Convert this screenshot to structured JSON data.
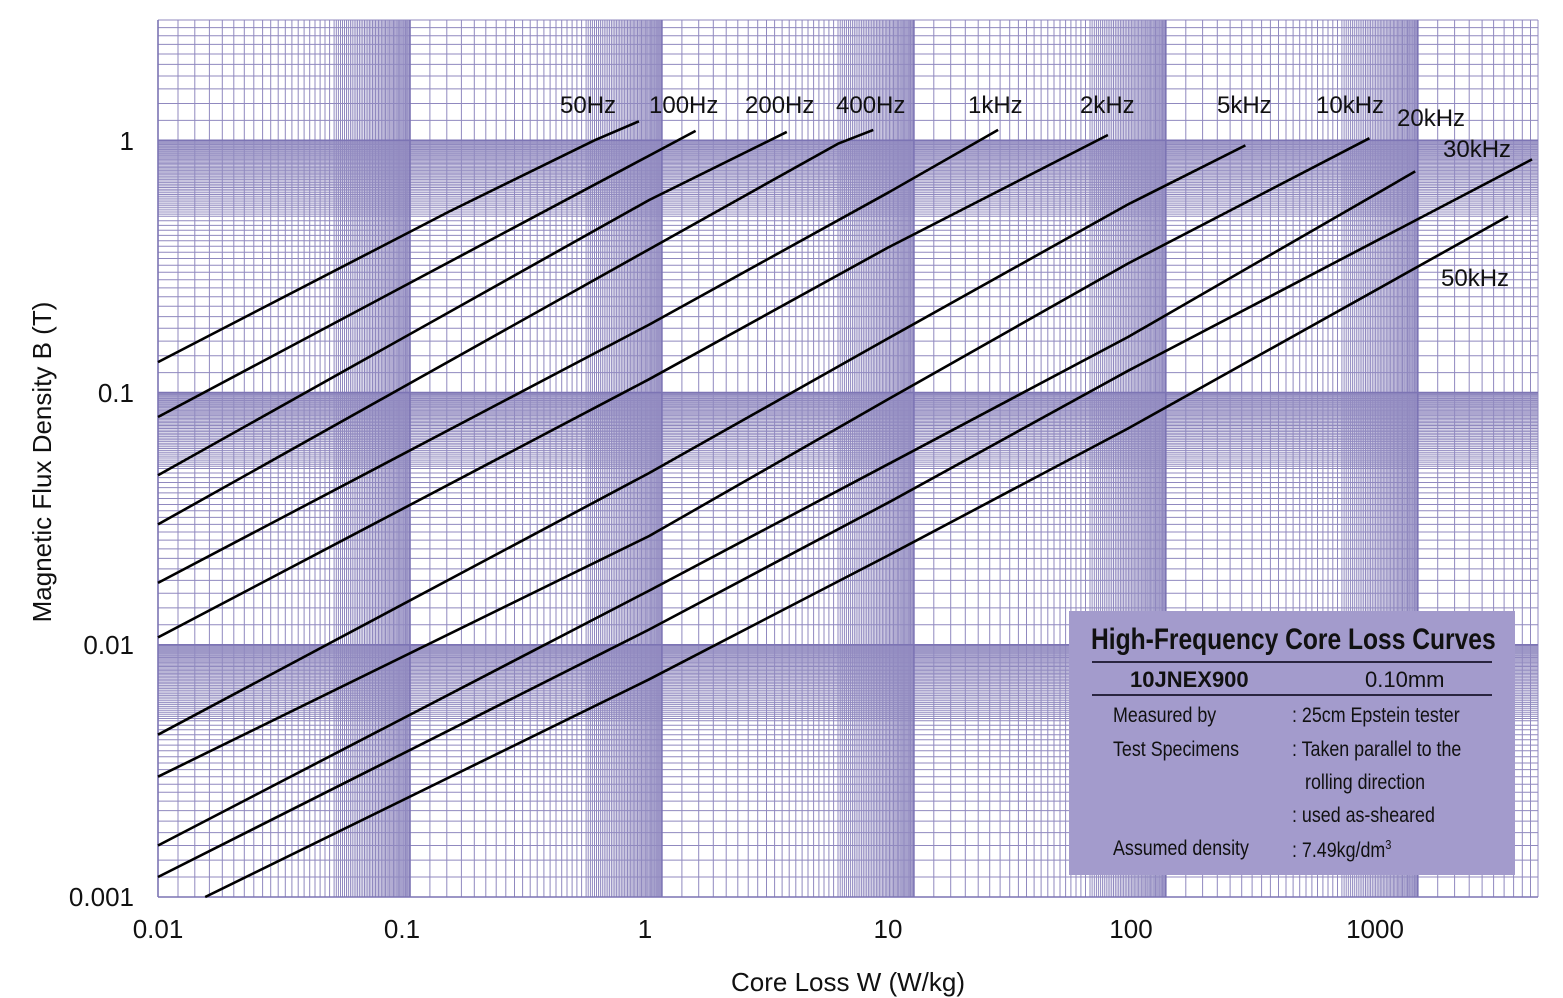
{
  "chart_data": {
    "type": "line",
    "title": "",
    "xlabel": "Core Loss W (W/kg)",
    "ylabel": "Magnetic Flux Density B (T)",
    "xscale": "log",
    "yscale": "log",
    "xlim": [
      0.01,
      3000
    ],
    "ylim": [
      0.001,
      3
    ],
    "grid": true,
    "grid_color": "#7c74b4",
    "line_color": "#000000",
    "xticks": [
      "0.01",
      "0.1",
      "1",
      "10",
      "100",
      "1000"
    ],
    "yticks": [
      "1",
      "0.1",
      "0.01",
      "0.001"
    ],
    "series": [
      {
        "name": "50Hz",
        "points": [
          [
            0.01,
            0.132
          ],
          [
            0.142,
            0.52
          ],
          [
            0.54,
            1.0
          ],
          [
            0.81,
            1.19
          ]
        ]
      },
      {
        "name": "100Hz",
        "points": [
          [
            0.01,
            0.08
          ],
          [
            0.89,
            0.87
          ],
          [
            1.36,
            1.09
          ]
        ]
      },
      {
        "name": "200Hz",
        "points": [
          [
            0.01,
            0.047
          ],
          [
            0.89,
            0.58
          ],
          [
            3.13,
            1.08
          ]
        ]
      },
      {
        "name": "400Hz",
        "points": [
          [
            0.01,
            0.03
          ],
          [
            0.89,
            0.37
          ],
          [
            5.0,
            0.97
          ],
          [
            6.9,
            1.1
          ]
        ]
      },
      {
        "name": "1kHz",
        "points": [
          [
            0.01,
            0.0176
          ],
          [
            0.89,
            0.186
          ],
          [
            7.9,
            0.62
          ],
          [
            21.6,
            1.1
          ]
        ]
      },
      {
        "name": "2kHz",
        "points": [
          [
            0.01,
            0.0107
          ],
          [
            0.89,
            0.113
          ],
          [
            7.9,
            0.376
          ],
          [
            58.9,
            1.05
          ]
        ]
      },
      {
        "name": "5kHz",
        "points": [
          [
            0.01,
            0.0044
          ],
          [
            0.89,
            0.048
          ],
          [
            7.9,
            0.164
          ],
          [
            70.8,
            0.557
          ],
          [
            207,
            0.955
          ]
        ]
      },
      {
        "name": "10kHz",
        "points": [
          [
            0.01,
            0.003
          ],
          [
            0.89,
            0.027
          ],
          [
            7.9,
            0.094
          ],
          [
            70.8,
            0.325
          ],
          [
            643,
            1.02
          ]
        ]
      },
      {
        "name": "20kHz",
        "points": [
          [
            0.01,
            0.0016
          ],
          [
            0.89,
            0.0164
          ],
          [
            7.9,
            0.052
          ],
          [
            70.8,
            0.166
          ],
          [
            977,
            0.753
          ]
        ]
      },
      {
        "name": "30kHz",
        "points": [
          [
            0.01,
            0.0012
          ],
          [
            0.89,
            0.0115
          ],
          [
            7.9,
            0.0366
          ],
          [
            70.8,
            0.122
          ],
          [
            2840,
            0.84
          ]
        ]
      },
      {
        "name": "50kHz",
        "points": [
          [
            0.0154,
            0.001
          ],
          [
            0.89,
            0.0073
          ],
          [
            7.9,
            0.0226
          ],
          [
            70.8,
            0.072
          ],
          [
            2280,
            0.5
          ]
        ]
      }
    ],
    "info_box": {
      "title": "High-Frequency Core Loss Curves",
      "grade": "10JNEX900",
      "thickness": "0.10mm",
      "rows": [
        {
          "label": "Measured by",
          "value": ": 25cm Epstein tester"
        },
        {
          "label": "Test Specimens",
          "value": ": Taken parallel to the"
        },
        {
          "label": "",
          "value": "rolling direction"
        },
        {
          "label": "",
          "value": ": used as-sheared"
        },
        {
          "label": "Assumed density",
          "value": ": 7.49kg/dm",
          "sup": "3"
        }
      ],
      "background": "#a39bcc"
    }
  }
}
